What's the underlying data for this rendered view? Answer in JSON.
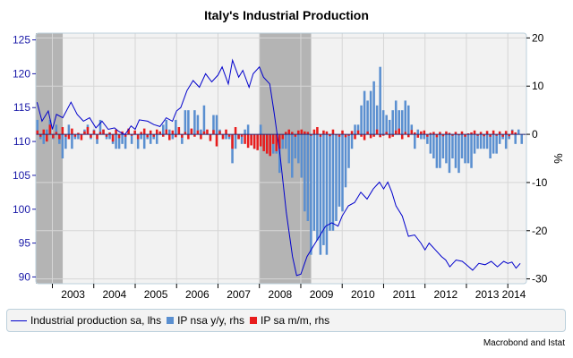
{
  "chart_data": {
    "type": "bar+line",
    "title": "Italy's Industrial Production",
    "left_axis": {
      "ylim": [
        89,
        126
      ],
      "ticks": [
        90,
        95,
        100,
        105,
        110,
        115,
        120,
        125
      ]
    },
    "right_axis": {
      "label": "%",
      "ylim": [
        -31,
        21
      ],
      "ticks": [
        -30,
        -20,
        -10,
        0,
        10,
        20
      ]
    },
    "x_axis": {
      "range": [
        2002.6,
        2014.45
      ],
      "year_labels": [
        "2003",
        "2004",
        "2005",
        "2006",
        "2007",
        "2008",
        "2009",
        "2010",
        "2011",
        "2012",
        "2013",
        "2014"
      ]
    },
    "recessions": [
      [
        2002.6,
        2003.25
      ],
      [
        2008.0,
        2009.25
      ]
    ],
    "grid": true,
    "legend_position": "bottom",
    "series": [
      {
        "name": "Industrial production sa, lhs",
        "kind": "line",
        "axis": "left",
        "color": "#0000cc",
        "x": [
          2002.63,
          2002.75,
          2002.9,
          2003.0,
          2003.1,
          2003.25,
          2003.45,
          2003.6,
          2003.75,
          2003.9,
          2004.05,
          2004.2,
          2004.35,
          2004.5,
          2004.6,
          2004.75,
          2004.9,
          2005.0,
          2005.1,
          2005.3,
          2005.45,
          2005.6,
          2005.75,
          2005.9,
          2006.0,
          2006.1,
          2006.25,
          2006.4,
          2006.55,
          2006.7,
          2006.85,
          2007.0,
          2007.1,
          2007.25,
          2007.35,
          2007.5,
          2007.6,
          2007.75,
          2007.85,
          2008.0,
          2008.1,
          2008.25,
          2008.35,
          2008.5,
          2008.65,
          2008.8,
          2008.9,
          2009.0,
          2009.15,
          2009.3,
          2009.45,
          2009.6,
          2009.75,
          2009.9,
          2010.0,
          2010.15,
          2010.3,
          2010.45,
          2010.6,
          2010.75,
          2010.9,
          2011.0,
          2011.1,
          2011.2,
          2011.3,
          2011.45,
          2011.6,
          2011.75,
          2011.9,
          2012.0,
          2012.1,
          2012.25,
          2012.4,
          2012.5,
          2012.6,
          2012.75,
          2012.9,
          2013.0,
          2013.15,
          2013.3,
          2013.45,
          2013.6,
          2013.75,
          2013.9,
          2014.0,
          2014.1,
          2014.2,
          2014.3
        ],
        "values": [
          115.8,
          113.0,
          114.5,
          111.8,
          114.0,
          113.5,
          115.8,
          114.0,
          113.0,
          113.5,
          112.0,
          113.0,
          111.8,
          112.0,
          111.5,
          111.0,
          112.3,
          111.8,
          113.2,
          113.0,
          112.5,
          112.2,
          113.5,
          113.0,
          114.5,
          115.0,
          117.5,
          119.0,
          118.0,
          120.0,
          118.8,
          119.8,
          121.0,
          118.5,
          122.0,
          119.5,
          120.5,
          118.0,
          120.0,
          121.0,
          119.5,
          118.5,
          114.5,
          108.0,
          99.5,
          93.0,
          90.2,
          90.4,
          93.0,
          94.5,
          96.0,
          97.5,
          98.0,
          97.5,
          99.0,
          100.5,
          101.0,
          102.5,
          101.5,
          103.0,
          104.0,
          103.0,
          104.0,
          102.5,
          100.5,
          99.0,
          96.0,
          96.2,
          95.0,
          94.0,
          95.0,
          94.0,
          93.0,
          92.5,
          91.5,
          92.5,
          92.3,
          91.8,
          91.0,
          92.0,
          91.8,
          92.3,
          91.5,
          92.3,
          92.0,
          92.2,
          91.3,
          92.0
        ]
      },
      {
        "name": "IP nsa y/y, rhs",
        "kind": "bar",
        "axis": "right",
        "color": "#5a8fd0",
        "values": [
          3,
          -1,
          -2,
          1,
          3,
          -1,
          2,
          -2,
          -5,
          -3,
          2,
          -3,
          -1,
          -1,
          0,
          1,
          2,
          -1,
          1,
          -2,
          3,
          1,
          -1,
          -1,
          -2,
          -3,
          -3,
          -2,
          -3,
          1,
          -2,
          0,
          -3,
          -1,
          -3,
          -1,
          -2,
          -1,
          -2,
          0,
          2,
          3,
          1,
          -1,
          3,
          1,
          -2,
          5,
          5,
          1,
          5,
          4,
          1,
          6,
          0,
          -1,
          4,
          4,
          1,
          -1,
          -1,
          -1,
          -6,
          -3,
          -1,
          -2,
          1,
          2,
          -1,
          -3,
          -1,
          2,
          -3,
          -4,
          -3,
          -4,
          -4,
          -8,
          -3,
          -3,
          -6,
          -9,
          -5,
          -6,
          -9,
          -16,
          -18,
          -25,
          -20,
          -22,
          -25,
          -23,
          -25,
          -20,
          -20,
          -18,
          -15,
          -16,
          -11,
          -7,
          -3,
          2,
          2,
          6,
          9,
          7,
          9,
          11,
          6,
          14,
          5,
          4,
          3,
          5,
          7,
          5,
          5,
          7,
          6,
          2,
          -3,
          1,
          -1,
          -1,
          -2,
          -4,
          -5,
          -7,
          -7,
          -5,
          -6,
          -8,
          -5,
          -7,
          -8,
          -5,
          -6,
          -6,
          -7,
          -4,
          -3,
          -3,
          -3,
          -3,
          -5,
          -4,
          -4,
          -2,
          -1,
          -3,
          -1,
          1,
          -2,
          1,
          -2,
          0
        ]
      },
      {
        "name": "IP sa m/m, rhs",
        "kind": "bar",
        "axis": "right",
        "color": "#e81c1c",
        "values": [
          0.8,
          -0.5,
          1.0,
          -1.5,
          2.0,
          -0.8,
          0.5,
          -1.0,
          1.5,
          -0.5,
          -1.0,
          1.2,
          -0.5,
          0.3,
          -1.2,
          0.6,
          1.5,
          -0.7,
          0.8,
          -1.0,
          0.5,
          1.0,
          -0.5,
          0.4,
          -1.5,
          1.0,
          -0.8,
          0.6,
          -0.5,
          1.2,
          -0.3,
          0.8,
          -1.0,
          0.5,
          1.2,
          -0.6,
          0.8,
          -0.5,
          1.0,
          0.6,
          -0.5,
          1.0,
          -1.2,
          0.8,
          -0.6,
          1.5,
          -0.7,
          0.5,
          -1.0,
          1.2,
          -0.5,
          0.8,
          -1.0,
          0.6,
          1.0,
          -1.4,
          0.9,
          -2.5,
          0.7,
          -1.0,
          1.0,
          -0.5,
          -3.0,
          1.5,
          -1.0,
          -0.5,
          -2.0,
          -2.8,
          -2.3,
          -3.0,
          -3.3,
          -2.5,
          -3.5,
          -4.0,
          -4.5,
          -2.0,
          -3.5,
          -3.0,
          -1.0,
          0.5,
          1.0,
          0.5,
          -0.5,
          0.8,
          1.0,
          0.6,
          0.5,
          -0.3,
          1.0,
          1.5,
          -0.5,
          0.8,
          0.6,
          -0.4,
          1.0,
          -0.2,
          -0.5,
          0.8,
          -0.6,
          -0.3,
          0.7,
          -1.0,
          0.8,
          -0.5,
          -1.2,
          0.6,
          -0.8,
          -0.5,
          1.0,
          -0.6,
          -0.3,
          0.5,
          -0.8,
          -0.5,
          0.8,
          1.2,
          -1.0,
          0.5,
          -0.6,
          0.9,
          0.4,
          -0.7,
          0.6,
          0.8,
          -0.5,
          0.3,
          0.5,
          -0.6,
          0.5,
          -0.4,
          0.6,
          0.3,
          -0.3,
          0.5,
          -0.2,
          0.6,
          -0.5,
          0.2,
          0.4,
          0.8,
          -0.3,
          0.5,
          -0.4,
          0.7,
          -0.5,
          0.8,
          -0.3,
          0.6,
          -0.5,
          0.7,
          -0.4,
          0.8,
          0.4
        ]
      }
    ]
  },
  "legend": {
    "line": "Industrial production sa, lhs",
    "bar_yoy": "IP nsa y/y, rhs",
    "bar_mom": "IP sa m/m, rhs"
  },
  "source": "Macrobond and Istat",
  "colors": {
    "plot_bg": "#f2f2f2",
    "recession": "#b4b4b4",
    "grid": "#d6d6d6",
    "frame": "#bcd0dc"
  }
}
